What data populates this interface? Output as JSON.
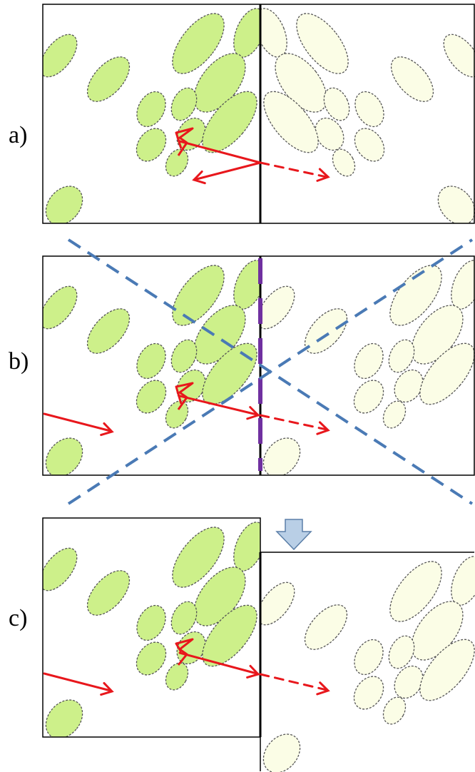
{
  "panels": [
    {
      "label": "a)"
    },
    {
      "label": "b)"
    },
    {
      "label": "c)"
    }
  ],
  "colors": {
    "cell_fill": "#cdf08a",
    "cell_fill_faded": "#fbfde6",
    "cell_outline": "#555555",
    "arrow_red": "#e8171c",
    "projection_blue": "#4a7ab5",
    "boundary_purple": "#7030a0",
    "down_arrow_fill": "#b9cfe6",
    "down_arrow_stroke": "#5b7fa8"
  },
  "icons": {
    "step_arrow": "down-arrow-icon"
  }
}
